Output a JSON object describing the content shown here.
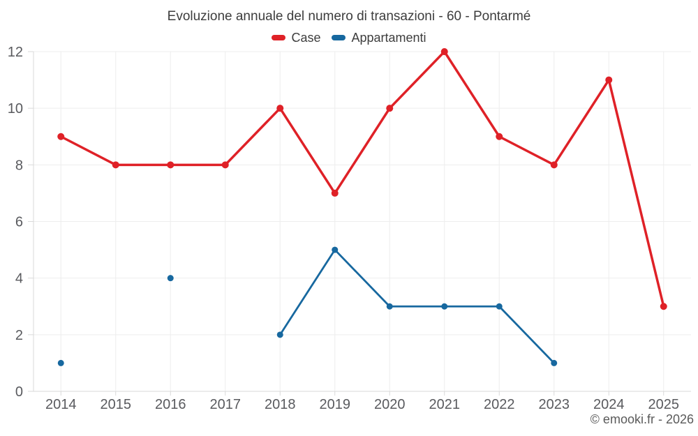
{
  "footer": "© emooki.fr - 2026",
  "chart_data": {
    "type": "line",
    "title": "Evoluzione annuale del numero di transazioni - 60 - Pontarmé",
    "categories": [
      "2014",
      "2015",
      "2016",
      "2017",
      "2018",
      "2019",
      "2020",
      "2021",
      "2022",
      "2023",
      "2024",
      "2025"
    ],
    "series": [
      {
        "name": "Case",
        "color": "#df2127",
        "values": [
          9,
          8,
          8,
          8,
          10,
          7,
          10,
          12,
          9,
          8,
          11,
          3
        ]
      },
      {
        "name": "Appartamenti",
        "color": "#17689f",
        "values": [
          1,
          null,
          4,
          null,
          2,
          5,
          3,
          3,
          3,
          1,
          null,
          null
        ]
      }
    ],
    "ylim": [
      0,
      12
    ],
    "ytick_step": 2,
    "xlabel": "",
    "ylabel": "",
    "grid": true,
    "legend_position": "top"
  },
  "colors": {
    "grid": "#ededed",
    "axis": "#d9d9d9",
    "tick_label": "#595a5e",
    "title": "#3d3d3d",
    "footer": "#5a5a5a",
    "background": "#ffffff"
  }
}
